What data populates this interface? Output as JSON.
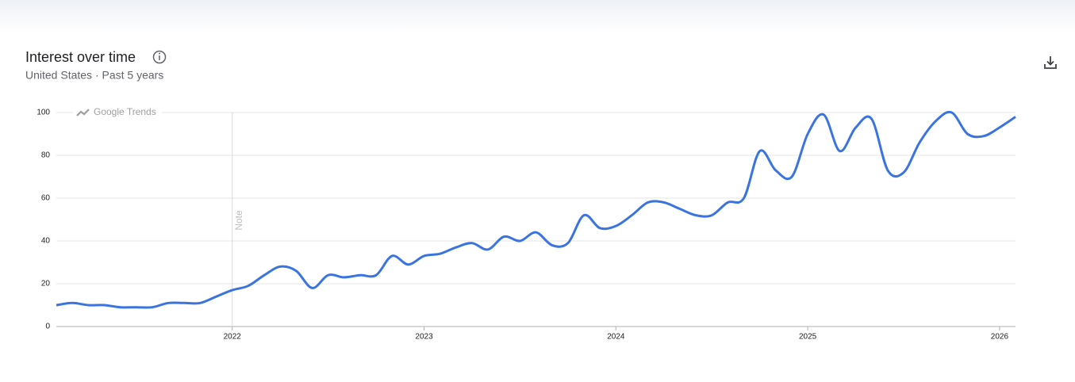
{
  "chart_data": {
    "type": "line",
    "title": "Interest over time",
    "subtitle": "United States · Past 5 years",
    "watermark": "Google Trends",
    "x": [
      2021.083,
      2021.167,
      2021.25,
      2021.333,
      2021.417,
      2021.5,
      2021.583,
      2021.667,
      2021.75,
      2021.833,
      2021.917,
      2022,
      2022.083,
      2022.167,
      2022.25,
      2022.333,
      2022.417,
      2022.5,
      2022.583,
      2022.667,
      2022.75,
      2022.833,
      2022.917,
      2023,
      2023.083,
      2023.167,
      2023.25,
      2023.333,
      2023.417,
      2023.5,
      2023.583,
      2023.667,
      2023.75,
      2023.833,
      2023.917,
      2024,
      2024.083,
      2024.167,
      2024.25,
      2024.333,
      2024.417,
      2024.5,
      2024.583,
      2024.667,
      2024.75,
      2024.833,
      2024.917,
      2025,
      2025.083,
      2025.167,
      2025.25,
      2025.333,
      2025.417,
      2025.5,
      2025.583,
      2025.667,
      2025.75,
      2025.833,
      2025.917,
      2026,
      2026.083
    ],
    "values": [
      10,
      11,
      10,
      10,
      9,
      9,
      9,
      11,
      11,
      11,
      14,
      17,
      19,
      24,
      28,
      26,
      18,
      24,
      23,
      24,
      24,
      33,
      29,
      33,
      34,
      37,
      39,
      36,
      42,
      40,
      44,
      38,
      39,
      52,
      46,
      47,
      52,
      58,
      58,
      55,
      52,
      52,
      58,
      60,
      82,
      73,
      70,
      90,
      99,
      82,
      93,
      97,
      73,
      72,
      86,
      96,
      100,
      90,
      89,
      93,
      98
    ],
    "color": "#3a74e0",
    "xlim": [
      2021.083,
      2026.083
    ],
    "xticks": [
      2022,
      2023,
      2024,
      2025,
      2026
    ],
    "ylim": [
      0,
      100
    ],
    "yticks": [
      0,
      20,
      40,
      60,
      80,
      100
    ],
    "grid": true,
    "note": {
      "x": 2022,
      "label": "Note"
    }
  }
}
